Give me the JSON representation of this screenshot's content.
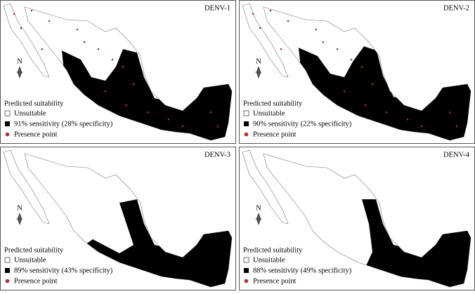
{
  "panels": [
    {
      "title": "DENV-1",
      "north": "N",
      "legend": {
        "title": "Predicted suitability",
        "items": [
          "Unsuitable",
          "91% sensitivity (28% specificity)",
          "Presence point"
        ]
      }
    },
    {
      "title": "DENV-2",
      "north": "N",
      "legend": {
        "title": "Predicted suitability",
        "items": [
          "Unsuitable",
          "90% sensitivity (22% specificity)",
          "Presence point"
        ]
      }
    },
    {
      "title": "DENV-3",
      "north": "N",
      "legend": {
        "title": "Predicted suitability",
        "items": [
          "Unsuitable",
          "89% sensitivity (43% specificity)",
          "Presence point"
        ]
      }
    },
    {
      "title": "DENV-4",
      "north": "N",
      "legend": {
        "title": "Predicted suitability",
        "items": [
          "Unsuitable",
          "88% sensitivity (49% specificity)",
          "Presence point"
        ]
      }
    }
  ]
}
